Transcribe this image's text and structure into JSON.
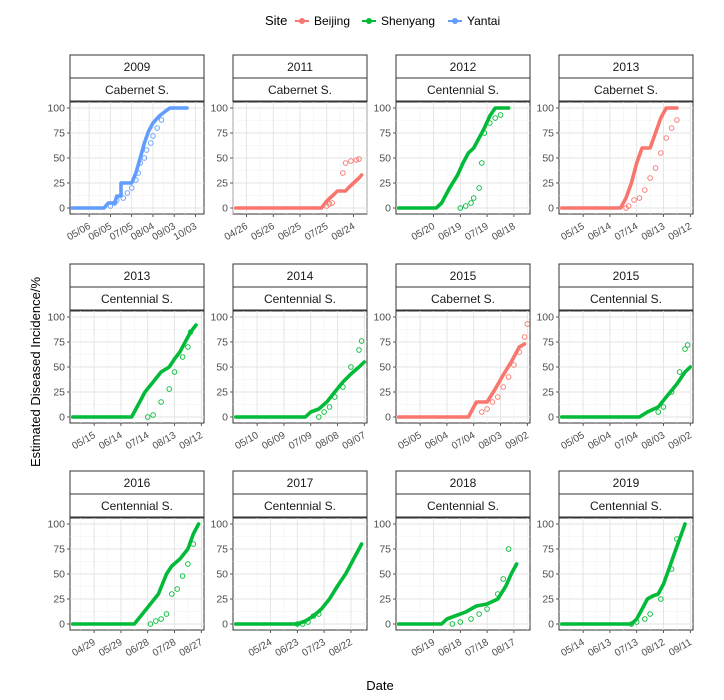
{
  "legend": {
    "title": "Site",
    "entries": [
      {
        "label": "Beijing",
        "color": "#F8766D"
      },
      {
        "label": "Shenyang",
        "color": "#00BA38"
      },
      {
        "label": "Yantai",
        "color": "#619CFF"
      }
    ]
  },
  "axes": {
    "xlabel": "Date",
    "ylabel": "Estimated Diseased Incidence/%",
    "yticks": [
      0,
      25,
      50,
      75,
      100
    ],
    "ylim": [
      0,
      100
    ]
  },
  "chart_data": [
    {
      "type": "scatter",
      "year": "2009",
      "cultivar": "Cabernet S.",
      "site": "Yantai",
      "xticks": [
        "05/06",
        "06/05",
        "07/05",
        "08/04",
        "09/03",
        "10/03"
      ],
      "xdomain": [
        -0.9,
        5.4
      ],
      "line": [
        [
          -0.8,
          0
        ],
        [
          0.7,
          0
        ],
        [
          0.9,
          5
        ],
        [
          1.2,
          5
        ],
        [
          1.3,
          12
        ],
        [
          1.5,
          12
        ],
        [
          1.5,
          25
        ],
        [
          2.0,
          25
        ],
        [
          2.2,
          35
        ],
        [
          2.4,
          50
        ],
        [
          2.6,
          65
        ],
        [
          2.8,
          77
        ],
        [
          3.0,
          85
        ],
        [
          3.3,
          92
        ],
        [
          3.6,
          97
        ],
        [
          3.8,
          100
        ],
        [
          4.6,
          100
        ]
      ],
      "points": [
        [
          1.0,
          2
        ],
        [
          1.2,
          5
        ],
        [
          1.3,
          8
        ],
        [
          1.6,
          10
        ],
        [
          1.8,
          15
        ],
        [
          2.0,
          20
        ],
        [
          2.2,
          28
        ],
        [
          2.3,
          35
        ],
        [
          2.4,
          45
        ],
        [
          2.6,
          50
        ],
        [
          2.7,
          58
        ],
        [
          2.9,
          65
        ],
        [
          3.0,
          72
        ],
        [
          3.2,
          80
        ],
        [
          3.4,
          88
        ]
      ]
    },
    {
      "type": "scatter",
      "year": "2011",
      "cultivar": "Cabernet S.",
      "site": "Beijing",
      "xticks": [
        "04/26",
        "05/26",
        "06/25",
        "07/25",
        "08/24"
      ],
      "xdomain": [
        -0.5,
        4.5
      ],
      "line": [
        [
          -0.4,
          0
        ],
        [
          2.8,
          0
        ],
        [
          3.0,
          7
        ],
        [
          3.2,
          12
        ],
        [
          3.4,
          17
        ],
        [
          3.7,
          17
        ],
        [
          3.8,
          20
        ],
        [
          4.0,
          25
        ],
        [
          4.2,
          30
        ],
        [
          4.3,
          33
        ]
      ],
      "points": [
        [
          3.0,
          2
        ],
        [
          3.1,
          4
        ],
        [
          3.2,
          5
        ],
        [
          3.6,
          35
        ],
        [
          3.7,
          45
        ],
        [
          3.9,
          47
        ],
        [
          4.1,
          48
        ],
        [
          4.2,
          49
        ]
      ]
    },
    {
      "type": "scatter",
      "year": "2012",
      "cultivar": "Centennial S.",
      "site": "Shenyang",
      "xticks": [
        "05/20",
        "06/19",
        "07/19",
        "08/18"
      ],
      "xdomain": [
        -1.4,
        3.6
      ],
      "line": [
        [
          -1.3,
          0
        ],
        [
          0.1,
          0
        ],
        [
          0.3,
          5
        ],
        [
          0.6,
          20
        ],
        [
          0.9,
          33
        ],
        [
          1.1,
          45
        ],
        [
          1.3,
          55
        ],
        [
          1.5,
          60
        ],
        [
          1.7,
          70
        ],
        [
          1.9,
          80
        ],
        [
          2.1,
          92
        ],
        [
          2.3,
          100
        ],
        [
          2.8,
          100
        ]
      ],
      "points": [
        [
          1.0,
          0
        ],
        [
          1.2,
          2
        ],
        [
          1.4,
          5
        ],
        [
          1.5,
          10
        ],
        [
          1.7,
          20
        ],
        [
          1.8,
          45
        ],
        [
          1.9,
          75
        ],
        [
          2.1,
          85
        ],
        [
          2.3,
          90
        ],
        [
          2.5,
          93
        ]
      ]
    },
    {
      "type": "scatter",
      "year": "2013",
      "cultivar": "Cabernet S.",
      "site": "Beijing",
      "xticks": [
        "05/15",
        "06/14",
        "07/14",
        "08/13",
        "09/12"
      ],
      "xdomain": [
        -0.9,
        4.1
      ],
      "line": [
        [
          -0.8,
          0
        ],
        [
          1.4,
          0
        ],
        [
          1.6,
          10
        ],
        [
          1.8,
          25
        ],
        [
          2.0,
          45
        ],
        [
          2.2,
          60
        ],
        [
          2.5,
          60
        ],
        [
          2.7,
          75
        ],
        [
          2.9,
          90
        ],
        [
          3.1,
          100
        ],
        [
          3.5,
          100
        ]
      ],
      "points": [
        [
          1.6,
          0
        ],
        [
          1.7,
          2
        ],
        [
          1.9,
          8
        ],
        [
          2.1,
          10
        ],
        [
          2.3,
          18
        ],
        [
          2.5,
          30
        ],
        [
          2.7,
          40
        ],
        [
          2.9,
          55
        ],
        [
          3.1,
          70
        ],
        [
          3.3,
          80
        ],
        [
          3.5,
          88
        ]
      ]
    },
    {
      "type": "scatter",
      "year": "2013",
      "cultivar": "Centennial S.",
      "site": "Shenyang",
      "xticks": [
        "05/15",
        "06/14",
        "07/14",
        "08/13",
        "09/12"
      ],
      "xdomain": [
        -0.9,
        4.1
      ],
      "line": [
        [
          -0.8,
          0
        ],
        [
          1.4,
          0
        ],
        [
          1.5,
          5
        ],
        [
          1.7,
          15
        ],
        [
          1.9,
          25
        ],
        [
          2.2,
          35
        ],
        [
          2.5,
          45
        ],
        [
          2.8,
          50
        ],
        [
          3.0,
          58
        ],
        [
          3.2,
          65
        ],
        [
          3.4,
          75
        ],
        [
          3.6,
          85
        ],
        [
          3.8,
          92
        ]
      ],
      "points": [
        [
          2.0,
          0
        ],
        [
          2.2,
          2
        ],
        [
          2.5,
          15
        ],
        [
          2.8,
          28
        ],
        [
          3.0,
          45
        ],
        [
          3.3,
          60
        ],
        [
          3.5,
          70
        ],
        [
          3.6,
          85
        ]
      ]
    },
    {
      "type": "scatter",
      "year": "2014",
      "cultivar": "Centennial S.",
      "site": "Shenyang",
      "xticks": [
        "05/10",
        "06/09",
        "07/09",
        "08/08",
        "09/07"
      ],
      "xdomain": [
        -0.9,
        4.1
      ],
      "line": [
        [
          -0.8,
          0
        ],
        [
          1.8,
          0
        ],
        [
          2.0,
          5
        ],
        [
          2.3,
          8
        ],
        [
          2.6,
          15
        ],
        [
          2.9,
          25
        ],
        [
          3.2,
          35
        ],
        [
          3.5,
          43
        ],
        [
          3.8,
          50
        ],
        [
          4.0,
          55
        ]
      ],
      "points": [
        [
          2.3,
          0
        ],
        [
          2.5,
          5
        ],
        [
          2.7,
          10
        ],
        [
          2.9,
          20
        ],
        [
          3.2,
          30
        ],
        [
          3.5,
          50
        ],
        [
          3.8,
          67
        ],
        [
          3.9,
          76
        ]
      ]
    },
    {
      "type": "scatter",
      "year": "2015",
      "cultivar": "Cabernet S.",
      "site": "Beijing",
      "xticks": [
        "05/05",
        "06/04",
        "07/04",
        "08/03",
        "09/02"
      ],
      "xdomain": [
        -0.9,
        4.1
      ],
      "line": [
        [
          -0.8,
          0
        ],
        [
          1.8,
          0
        ],
        [
          2.1,
          15
        ],
        [
          2.5,
          15
        ],
        [
          2.8,
          28
        ],
        [
          3.1,
          42
        ],
        [
          3.4,
          55
        ],
        [
          3.7,
          70
        ],
        [
          3.9,
          73
        ]
      ],
      "points": [
        [
          2.3,
          5
        ],
        [
          2.5,
          8
        ],
        [
          2.7,
          15
        ],
        [
          2.9,
          20
        ],
        [
          3.1,
          30
        ],
        [
          3.3,
          40
        ],
        [
          3.5,
          52
        ],
        [
          3.7,
          65
        ],
        [
          3.9,
          80
        ],
        [
          4.0,
          93
        ]
      ]
    },
    {
      "type": "scatter",
      "year": "2015",
      "cultivar": "Centennial S.",
      "site": "Shenyang",
      "xticks": [
        "05/05",
        "06/04",
        "07/04",
        "08/03",
        "09/02"
      ],
      "xdomain": [
        -0.9,
        4.1
      ],
      "line": [
        [
          -0.8,
          0
        ],
        [
          2.1,
          0
        ],
        [
          2.4,
          5
        ],
        [
          2.8,
          10
        ],
        [
          3.1,
          20
        ],
        [
          3.5,
          33
        ],
        [
          3.8,
          45
        ],
        [
          4.0,
          50
        ]
      ],
      "points": [
        [
          2.8,
          5
        ],
        [
          3.0,
          10
        ],
        [
          3.3,
          25
        ],
        [
          3.6,
          45
        ],
        [
          3.8,
          68
        ],
        [
          3.9,
          72
        ]
      ]
    },
    {
      "type": "scatter",
      "year": "2016",
      "cultivar": "Centennial S.",
      "site": "Shenyang",
      "xticks": [
        "04/29",
        "05/29",
        "06/28",
        "07/28",
        "08/27"
      ],
      "xdomain": [
        -0.9,
        4.1
      ],
      "line": [
        [
          -0.8,
          0
        ],
        [
          1.5,
          0
        ],
        [
          1.8,
          10
        ],
        [
          2.1,
          20
        ],
        [
          2.4,
          30
        ],
        [
          2.7,
          50
        ],
        [
          2.9,
          58
        ],
        [
          3.2,
          65
        ],
        [
          3.5,
          75
        ],
        [
          3.7,
          90
        ],
        [
          3.9,
          100
        ]
      ],
      "points": [
        [
          2.1,
          0
        ],
        [
          2.3,
          3
        ],
        [
          2.5,
          5
        ],
        [
          2.7,
          10
        ],
        [
          2.9,
          30
        ],
        [
          3.1,
          35
        ],
        [
          3.3,
          48
        ],
        [
          3.5,
          60
        ],
        [
          3.7,
          80
        ]
      ]
    },
    {
      "type": "scatter",
      "year": "2017",
      "cultivar": "Centennial S.",
      "site": "Shenyang",
      "xticks": [
        "05/24",
        "06/23",
        "07/23",
        "08/22"
      ],
      "xdomain": [
        -1.4,
        3.6
      ],
      "line": [
        [
          -1.3,
          0
        ],
        [
          1.0,
          0
        ],
        [
          1.3,
          3
        ],
        [
          1.6,
          8
        ],
        [
          1.9,
          15
        ],
        [
          2.2,
          25
        ],
        [
          2.5,
          38
        ],
        [
          2.8,
          50
        ],
        [
          3.1,
          65
        ],
        [
          3.3,
          75
        ],
        [
          3.4,
          80
        ]
      ],
      "points": [
        [
          1.0,
          0
        ],
        [
          1.2,
          0
        ],
        [
          1.4,
          2
        ],
        [
          1.6,
          8
        ],
        [
          1.8,
          10
        ]
      ]
    },
    {
      "type": "scatter",
      "year": "2018",
      "cultivar": "Centennial S.",
      "site": "Shenyang",
      "xticks": [
        "05/19",
        "06/18",
        "07/18",
        "08/17"
      ],
      "xdomain": [
        -1.4,
        3.6
      ],
      "line": [
        [
          -1.3,
          0
        ],
        [
          0.3,
          0
        ],
        [
          0.5,
          5
        ],
        [
          0.8,
          8
        ],
        [
          1.2,
          12
        ],
        [
          1.6,
          18
        ],
        [
          2.0,
          20
        ],
        [
          2.4,
          25
        ],
        [
          2.7,
          38
        ],
        [
          2.9,
          50
        ],
        [
          3.1,
          60
        ]
      ],
      "points": [
        [
          0.7,
          0
        ],
        [
          1.0,
          2
        ],
        [
          1.4,
          5
        ],
        [
          1.7,
          10
        ],
        [
          2.0,
          15
        ],
        [
          2.4,
          30
        ],
        [
          2.6,
          45
        ],
        [
          2.8,
          75
        ]
      ]
    },
    {
      "type": "scatter",
      "year": "2019",
      "cultivar": "Centennial S.",
      "site": "Shenyang",
      "xticks": [
        "05/14",
        "06/13",
        "07/13",
        "08/12",
        "09/11"
      ],
      "xdomain": [
        -0.9,
        4.1
      ],
      "line": [
        [
          -0.8,
          0
        ],
        [
          1.8,
          0
        ],
        [
          2.0,
          5
        ],
        [
          2.2,
          15
        ],
        [
          2.4,
          25
        ],
        [
          2.6,
          28
        ],
        [
          2.8,
          30
        ],
        [
          3.0,
          40
        ],
        [
          3.2,
          55
        ],
        [
          3.4,
          70
        ],
        [
          3.6,
          85
        ],
        [
          3.8,
          100
        ]
      ],
      "points": [
        [
          1.8,
          0
        ],
        [
          2.0,
          2
        ],
        [
          2.3,
          5
        ],
        [
          2.5,
          10
        ],
        [
          2.9,
          25
        ],
        [
          3.3,
          55
        ],
        [
          3.5,
          85
        ]
      ]
    }
  ]
}
